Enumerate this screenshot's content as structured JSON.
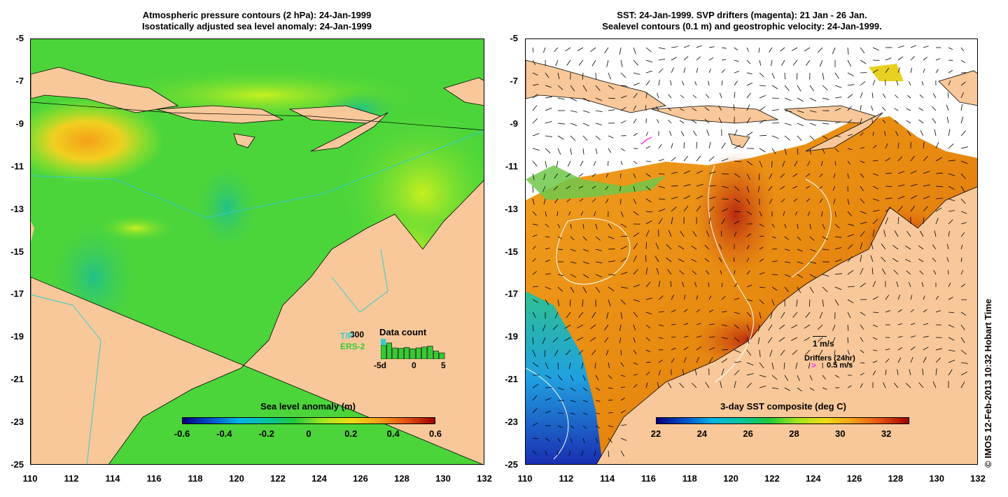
{
  "left_panel": {
    "title_line1": "Atmospheric pressure contours (2 hPa): 24-Jan-1999",
    "title_line2": "Isostatically adjusted sea level anomaly: 24-Jan-1999",
    "colorbar": {
      "title": "Sea level anomaly (m)",
      "ticks": [
        "-0.6",
        "-0.4",
        "-0.2",
        "0",
        "0.2",
        "0.4",
        "0.6"
      ],
      "range": [
        -0.6,
        0.6
      ]
    },
    "data_count": {
      "title": "Data count",
      "count_label": "300",
      "sat1": "T/P",
      "sat1_color": "#33cccc",
      "sat2": "ERS-2",
      "sat2_color": "#33cc33",
      "axis_labels": [
        "-5d",
        "0",
        "5"
      ],
      "bars_green": [
        0.62,
        0.72,
        0.5,
        0.48,
        0.52,
        0.46,
        0.5,
        0.54,
        0.58,
        0.36,
        0.28
      ],
      "bars_cyan": [
        0.9,
        0.7,
        0,
        0,
        0,
        0,
        0,
        0,
        0,
        0,
        0
      ]
    }
  },
  "right_panel": {
    "title_line1": "SST: 24-Jan-1999. SVP drifters (magenta): 21 Jan - 26 Jan.",
    "title_line2": "Sealevel contours (0.1 m) and geostrophic velocity: 24-Jan-1999.",
    "colorbar": {
      "title": "3-day SST composite (deg C)",
      "ticks": [
        "22",
        "24",
        "26",
        "28",
        "30",
        "32"
      ],
      "range": [
        22,
        33
      ]
    },
    "velocity_scale_label": "1 m/s",
    "drifter_label": "Drifters (24hr)",
    "drifter_scale_label": "0.5 m/s",
    "drifter_color": "#ff33ff",
    "credit": "© IMOS 12-Feb-2013 10:32 Hobart Time"
  },
  "axes": {
    "x_ticks": [
      "110",
      "112",
      "114",
      "116",
      "118",
      "120",
      "122",
      "124",
      "126",
      "128",
      "130",
      "132"
    ],
    "y_ticks": [
      "-5",
      "-7",
      "-9",
      "-11",
      "-13",
      "-15",
      "-17",
      "-19",
      "-21",
      "-23",
      "-25"
    ],
    "lon_range": [
      110,
      132
    ],
    "lat_range": [
      -25,
      -5
    ]
  },
  "colors": {
    "land": "#f8c89a",
    "ocean_green": "#4cd53a",
    "ocean_lime": "#b8f020",
    "sst_orange": "#e8820a",
    "sst_red": "#c43010",
    "sst_blue": "#1a3cc8"
  }
}
